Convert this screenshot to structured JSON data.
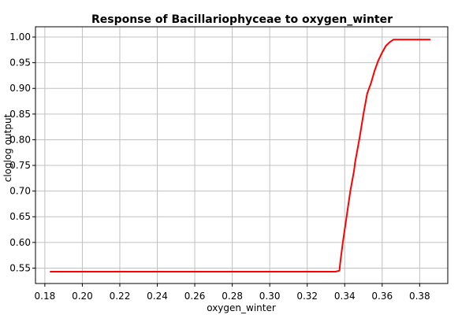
{
  "chart_data": {
    "type": "line",
    "title": "Response of Bacillariophyceae to oxygen_winter",
    "xlabel": "oxygen_winter",
    "ylabel": "cloglog output",
    "xlim": [
      0.175,
      0.395
    ],
    "ylim": [
      0.52,
      1.02
    ],
    "grid": true,
    "x_ticks": [
      "0.18",
      "0.20",
      "0.22",
      "0.24",
      "0.26",
      "0.28",
      "0.30",
      "0.32",
      "0.34",
      "0.36",
      "0.38"
    ],
    "y_ticks": [
      "0.55",
      "0.60",
      "0.65",
      "0.70",
      "0.75",
      "0.80",
      "0.85",
      "0.90",
      "0.95",
      "1.00"
    ],
    "series": [
      {
        "color": "#ff0000",
        "x": [
          0.183,
          0.2,
          0.25,
          0.3,
          0.335,
          0.3372,
          0.3376,
          0.339,
          0.341,
          0.343,
          0.345,
          0.3455,
          0.348,
          0.35,
          0.352,
          0.354,
          0.356,
          0.358,
          0.36,
          0.362,
          0.364,
          0.366,
          0.368,
          0.369,
          0.375,
          0.38,
          0.3855
        ],
        "y": [
          0.543,
          0.543,
          0.543,
          0.543,
          0.543,
          0.545,
          0.56,
          0.6,
          0.65,
          0.7,
          0.74,
          0.755,
          0.805,
          0.85,
          0.89,
          0.91,
          0.935,
          0.955,
          0.97,
          0.983,
          0.99,
          0.995,
          0.995,
          0.995,
          0.995,
          0.995,
          0.995
        ]
      }
    ]
  }
}
